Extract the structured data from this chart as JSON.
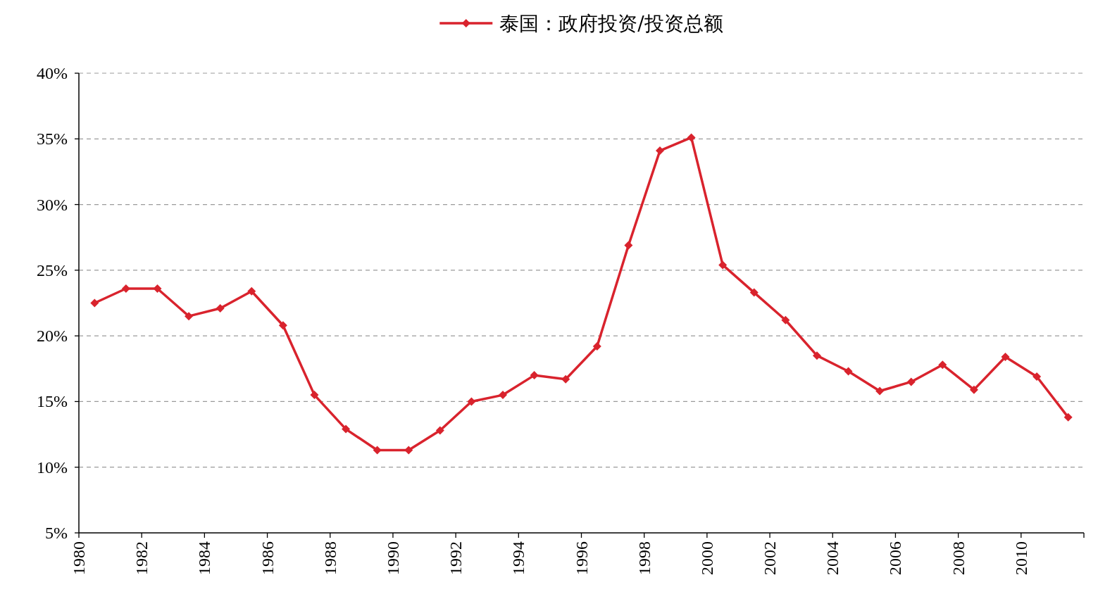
{
  "chart_data": {
    "type": "line",
    "marker": "diamond",
    "line_style": "solid",
    "grid": "y",
    "legend": "top",
    "x": [
      1980.5,
      1981.5,
      1982.5,
      1983.5,
      1984.5,
      1985.5,
      1986.5,
      1987.5,
      1988.5,
      1989.5,
      1990.5,
      1991.5,
      1992.5,
      1993.5,
      1994.5,
      1995.5,
      1996.5,
      1997.5,
      1998.5,
      1999.5,
      2000.5,
      2001.5,
      2002.5,
      2003.5,
      2004.5,
      2005.5,
      2006.5,
      2007.5,
      2008.5,
      2009.5,
      2010.5,
      2011.5
    ],
    "series": [
      {
        "name": "泰国：政府投资/投资总额",
        "color": "#d9232d",
        "values": [
          22.5,
          23.6,
          23.6,
          21.5,
          22.1,
          23.4,
          20.8,
          15.5,
          12.9,
          11.3,
          11.3,
          12.8,
          15.0,
          15.5,
          17.0,
          16.7,
          19.2,
          26.9,
          34.1,
          35.1,
          25.4,
          23.3,
          21.2,
          18.5,
          17.3,
          15.8,
          16.5,
          17.8,
          15.9,
          18.4,
          16.9,
          13.8
        ]
      }
    ],
    "xlim": [
      1980,
      2012
    ],
    "xticks": [
      1980,
      1982,
      1984,
      1986,
      1988,
      1990,
      1992,
      1994,
      1996,
      1998,
      2000,
      2002,
      2004,
      2006,
      2008,
      2010,
      {
        "value": 2012,
        "label": null
      }
    ],
    "ylim": [
      5,
      40
    ],
    "yticks": [
      {
        "value": 5,
        "label": "5%"
      },
      {
        "value": 10,
        "label": "10%"
      },
      {
        "value": 15,
        "label": "15%"
      },
      {
        "value": 20,
        "label": "20%"
      },
      {
        "value": 25,
        "label": "25%"
      },
      {
        "value": 30,
        "label": "30%"
      },
      {
        "value": 35,
        "label": "35%"
      },
      {
        "value": 40,
        "label": "40%"
      }
    ]
  }
}
